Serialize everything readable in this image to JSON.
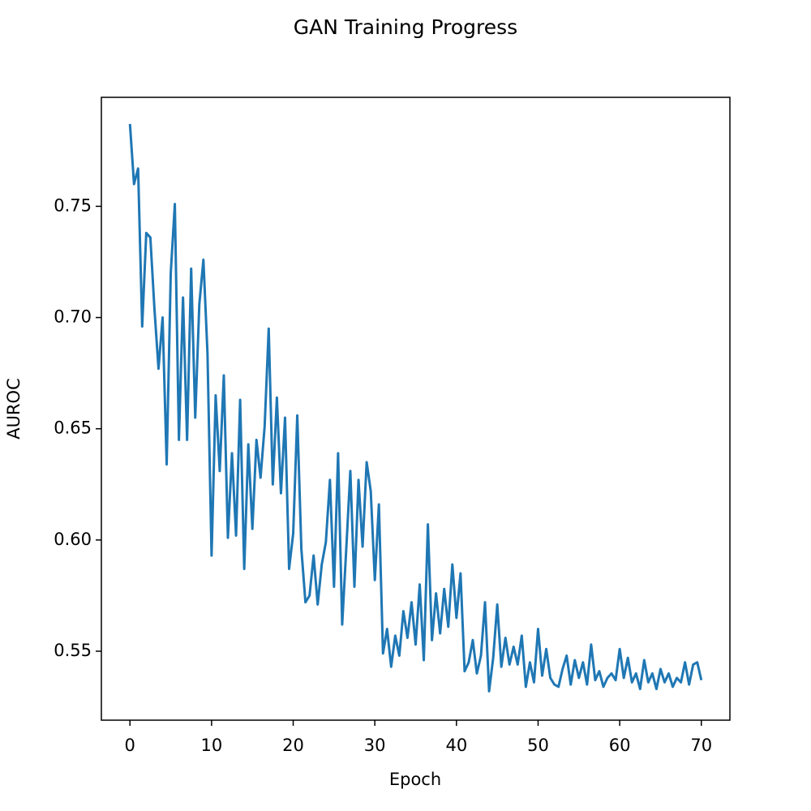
{
  "chart_data": {
    "type": "line",
    "title": "GAN Training Progress",
    "x_label": "Epoch",
    "y_label": "AUROC",
    "color": "#1f77b4",
    "x": [
      0,
      0.5,
      1,
      1.5,
      2,
      2.5,
      3,
      3.5,
      4,
      4.5,
      5,
      5.5,
      6,
      6.5,
      7,
      7.5,
      8,
      8.5,
      9,
      9.5,
      10,
      10.5,
      11,
      11.5,
      12,
      12.5,
      13,
      13.5,
      14,
      14.5,
      15,
      15.5,
      16,
      16.5,
      17,
      17.5,
      18,
      18.5,
      19,
      19.5,
      20,
      20.5,
      21,
      21.5,
      22,
      22.5,
      23,
      23.5,
      24,
      24.5,
      25,
      25.5,
      26,
      26.5,
      27,
      27.5,
      28,
      28.5,
      29,
      29.5,
      30,
      30.5,
      31,
      31.5,
      32,
      32.5,
      33,
      33.5,
      34,
      34.5,
      35,
      35.5,
      36,
      36.5,
      37,
      37.5,
      38,
      38.5,
      39,
      39.5,
      40,
      40.5,
      41,
      41.5,
      42,
      42.5,
      43,
      43.5,
      44,
      44.5,
      45,
      45.5,
      46,
      46.5,
      47,
      47.5,
      48,
      48.5,
      49,
      49.5,
      50,
      50.5,
      51,
      51.5,
      52,
      52.5,
      53,
      53.5,
      54,
      54.5,
      55,
      55.5,
      56,
      56.5,
      57,
      57.5,
      58,
      58.5,
      59,
      59.5,
      60,
      60.5,
      61,
      61.5,
      62,
      62.5,
      63,
      63.5,
      64,
      64.5,
      65,
      65.5,
      66,
      66.5,
      67,
      67.5,
      68,
      68.5,
      69,
      69.5,
      70
    ],
    "values": [
      0.787,
      0.76,
      0.767,
      0.696,
      0.738,
      0.736,
      0.704,
      0.677,
      0.7,
      0.634,
      0.72,
      0.751,
      0.645,
      0.709,
      0.645,
      0.722,
      0.655,
      0.706,
      0.726,
      0.684,
      0.593,
      0.665,
      0.631,
      0.674,
      0.601,
      0.639,
      0.602,
      0.663,
      0.587,
      0.643,
      0.605,
      0.645,
      0.628,
      0.651,
      0.695,
      0.625,
      0.664,
      0.621,
      0.655,
      0.587,
      0.603,
      0.656,
      0.596,
      0.572,
      0.575,
      0.593,
      0.571,
      0.589,
      0.599,
      0.627,
      0.579,
      0.639,
      0.562,
      0.596,
      0.631,
      0.579,
      0.627,
      0.597,
      0.635,
      0.622,
      0.582,
      0.616,
      0.549,
      0.56,
      0.543,
      0.557,
      0.548,
      0.568,
      0.556,
      0.572,
      0.553,
      0.58,
      0.546,
      0.607,
      0.555,
      0.576,
      0.558,
      0.578,
      0.561,
      0.589,
      0.565,
      0.585,
      0.541,
      0.545,
      0.555,
      0.54,
      0.548,
      0.572,
      0.532,
      0.547,
      0.571,
      0.543,
      0.556,
      0.544,
      0.552,
      0.544,
      0.557,
      0.534,
      0.545,
      0.536,
      0.56,
      0.539,
      0.551,
      0.538,
      0.535,
      0.534,
      0.542,
      0.548,
      0.535,
      0.546,
      0.538,
      0.545,
      0.535,
      0.553,
      0.537,
      0.541,
      0.534,
      0.538,
      0.54,
      0.537,
      0.551,
      0.538,
      0.547,
      0.536,
      0.54,
      0.533,
      0.546,
      0.536,
      0.54,
      0.533,
      0.542,
      0.536,
      0.54,
      0.534,
      0.538,
      0.536,
      0.545,
      0.535,
      0.544,
      0.545,
      0.537
    ],
    "xlim": [
      -3.5,
      73.5
    ],
    "ylim": [
      0.519,
      0.799
    ],
    "xticks": [
      0,
      10,
      20,
      30,
      40,
      50,
      60,
      70
    ],
    "yticks": [
      0.55,
      {
        "value": 0.6,
        "label": "0.60"
      },
      0.65,
      {
        "value": 0.7,
        "label": "0.70"
      },
      0.75
    ]
  }
}
